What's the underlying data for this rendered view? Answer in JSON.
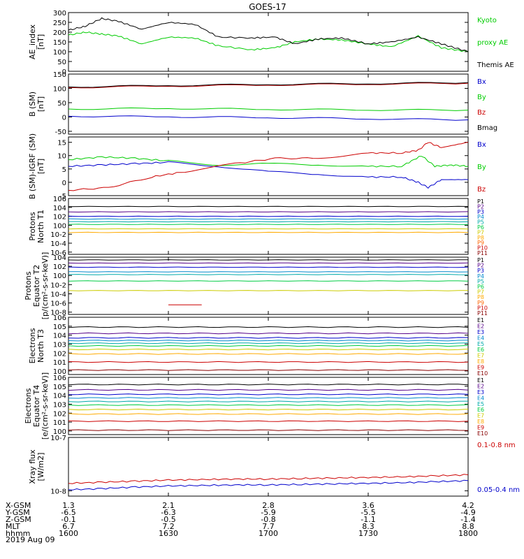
{
  "title": "GOES-17",
  "date_label": "2019 Aug 09",
  "colors": {
    "black": "#000000",
    "green": "#00cc00",
    "blue": "#0000cc",
    "red": "#cc0000"
  },
  "footer": {
    "labels": [
      "X-GSM",
      "Y-GSM",
      "Z-GSM",
      "MLT",
      "hhmm"
    ],
    "columns": [
      [
        "1.3",
        "-6.5",
        "-0.1",
        "6.7",
        "1600"
      ],
      [
        "2.1",
        "-6.3",
        "-0.5",
        "7.2",
        "1630"
      ],
      [
        "2.8",
        "-5.9",
        "-0.8",
        "7.7",
        "1700"
      ],
      [
        "3.6",
        "-5.5",
        "-1.1",
        "8.3",
        "1730"
      ],
      [
        "4.2",
        "-4.9",
        "-1.4",
        "8.8",
        "1800"
      ]
    ]
  },
  "chart_data": [
    {
      "type": "line",
      "ylabel": [
        "AE_index",
        "[nT]"
      ],
      "yticks": [
        "300",
        "250",
        "200",
        "150",
        "100",
        "50",
        "0"
      ],
      "ylim": [
        0,
        300
      ],
      "scale": "linear",
      "xlim": [
        "16:00",
        "18:00"
      ],
      "series": [
        {
          "name": "Kyoto proxy AE",
          "color": "#00cc00",
          "x": [
            0,
            5,
            10,
            15,
            22,
            30,
            38,
            45,
            55,
            62,
            68,
            75,
            82,
            90,
            97,
            105,
            112,
            120
          ],
          "y": [
            185,
            200,
            190,
            180,
            140,
            175,
            170,
            130,
            110,
            120,
            150,
            165,
            160,
            140,
            125,
            180,
            120,
            100
          ]
        },
        {
          "name": "Themis AE",
          "color": "#000000",
          "x": [
            0,
            5,
            10,
            15,
            22,
            30,
            38,
            45,
            55,
            62,
            68,
            75,
            82,
            90,
            97,
            105,
            112,
            120
          ],
          "y": [
            210,
            230,
            270,
            255,
            215,
            250,
            240,
            175,
            170,
            175,
            140,
            165,
            170,
            140,
            150,
            175,
            140,
            100
          ]
        }
      ],
      "legend": [
        {
          "text": "Kyoto",
          "color": "#00cc00"
        },
        {
          "text": "proxy AE",
          "color": "#00cc00"
        },
        {
          "text": "Themis AE",
          "color": "#000000"
        }
      ]
    },
    {
      "type": "line",
      "ylabel": [
        "B (SM)",
        "[nT]"
      ],
      "yticks": [
        "150",
        "100",
        "50",
        "0",
        "-50"
      ],
      "ylim": [
        -60,
        150
      ],
      "scale": "linear",
      "xlim": [
        "16:00",
        "18:00"
      ],
      "series": [
        {
          "name": "Bx",
          "color": "#0000cc",
          "x": [
            0,
            30,
            60,
            90,
            120
          ],
          "y": [
            3,
            1,
            -2,
            -6,
            -10
          ]
        },
        {
          "name": "By",
          "color": "#00cc00",
          "x": [
            0,
            30,
            60,
            90,
            120
          ],
          "y": [
            28,
            30,
            27,
            25,
            24
          ]
        },
        {
          "name": "Bz",
          "color": "#cc0000",
          "x": [
            0,
            30,
            60,
            90,
            120
          ],
          "y": [
            103,
            108,
            112,
            115,
            118
          ]
        },
        {
          "name": "Bmag",
          "color": "#000000",
          "x": [
            0,
            30,
            60,
            90,
            120
          ],
          "y": [
            105,
            110,
            114,
            117,
            120
          ]
        }
      ],
      "legend": [
        {
          "text": "Bx",
          "color": "#0000cc"
        },
        {
          "text": "By",
          "color": "#00cc00"
        },
        {
          "text": "Bz",
          "color": "#cc0000"
        },
        {
          "text": "Bmag",
          "color": "#000000"
        }
      ]
    },
    {
      "type": "line",
      "ylabel": [
        "B (SM)-IGRF (SM)",
        "[nT]"
      ],
      "yticks": [
        "15",
        "10",
        "5",
        "0",
        "-5"
      ],
      "ylim": [
        -5,
        17
      ],
      "scale": "linear",
      "xlim": [
        "16:00",
        "18:00"
      ],
      "series": [
        {
          "name": "Bx",
          "color": "#0000cc",
          "x": [
            0,
            10,
            20,
            30,
            45,
            60,
            75,
            90,
            100,
            105,
            108,
            112,
            120
          ],
          "y": [
            6,
            6.5,
            7,
            7.5,
            6,
            4,
            3,
            2,
            2,
            0,
            -2,
            1,
            1
          ]
        },
        {
          "name": "By",
          "color": "#00cc00",
          "x": [
            0,
            10,
            20,
            30,
            45,
            60,
            75,
            90,
            100,
            106,
            110,
            115,
            120
          ],
          "y": [
            8.5,
            9.5,
            9,
            8,
            6.5,
            7,
            6.5,
            6,
            6,
            10,
            6,
            6.5,
            6
          ]
        },
        {
          "name": "Bz",
          "color": "#cc0000",
          "x": [
            0,
            12,
            25,
            35,
            50,
            62,
            75,
            90,
            100,
            105,
            108,
            112,
            120
          ],
          "y": [
            -3,
            -2,
            2,
            4,
            7,
            9,
            9,
            11,
            11,
            12,
            15,
            13,
            15
          ]
        }
      ],
      "legend": [
        {
          "text": "Bx",
          "color": "#0000cc"
        },
        {
          "text": "By",
          "color": "#00cc00"
        },
        {
          "text": "Bz",
          "color": "#cc0000"
        }
      ]
    },
    {
      "type": "line",
      "scale": "log",
      "ylabel": [
        "Protons",
        "North T1"
      ],
      "yticks": [
        "10^6",
        "10^4",
        "10^2",
        "10^0",
        "10^-2",
        "10^-4",
        "10^-6"
      ],
      "ylim": [
        -6.5,
        6
      ],
      "xlim": [
        "16:00",
        "18:00"
      ],
      "series": [
        {
          "name": "P1",
          "color": "#000000",
          "value": 4.2
        },
        {
          "name": "P2",
          "color": "#550088",
          "value": 3.0
        },
        {
          "name": "P3",
          "color": "#0000cc",
          "value": 2.0
        },
        {
          "name": "P4",
          "color": "#0088cc",
          "value": 1.4
        },
        {
          "name": "P5",
          "color": "#00aaaa",
          "value": 0.8
        },
        {
          "name": "P6",
          "color": "#00cc44",
          "value": 0.2
        },
        {
          "name": "P7",
          "color": "#cccc00",
          "value": -0.8
        },
        {
          "name": "P8",
          "color": "#ffaa00",
          "value": -1.6
        }
      ],
      "legend": [
        {
          "text": "P1",
          "color": "#000000"
        },
        {
          "text": "P2",
          "color": "#550088"
        },
        {
          "text": "P3",
          "color": "#0000cc"
        },
        {
          "text": "P4",
          "color": "#0088cc"
        },
        {
          "text": "P5",
          "color": "#00aaaa"
        },
        {
          "text": "P6",
          "color": "#00cc44"
        },
        {
          "text": "P7",
          "color": "#cccc00"
        },
        {
          "text": "P8",
          "color": "#ffaa00"
        },
        {
          "text": "P9",
          "color": "#ff6600"
        },
        {
          "text": "P10",
          "color": "#cc0000"
        },
        {
          "text": "P11",
          "color": "#880000"
        }
      ]
    },
    {
      "type": "line",
      "scale": "log",
      "ylabel": [
        "Protons",
        "Equator T2",
        "[p/(cm²-s-sr-keV)]"
      ],
      "yticks": [
        "10^4",
        "10^2",
        "10^0",
        "10^-2",
        "10^-4",
        "10^-6",
        "10^-8"
      ],
      "ylim": [
        -8.5,
        4
      ],
      "xlim": [
        "16:00",
        "18:00"
      ],
      "series": [
        {
          "name": "P1",
          "color": "#000000",
          "value": 3.4
        },
        {
          "name": "P2",
          "color": "#550088",
          "value": 2.7
        },
        {
          "name": "P3",
          "color": "#0000cc",
          "value": 1.8
        },
        {
          "name": "P4",
          "color": "#0088cc",
          "value": 0.8
        },
        {
          "name": "P5",
          "color": "#00aaaa",
          "value": 0.2
        },
        {
          "name": "P6",
          "color": "#00cc44",
          "value": -1.2
        },
        {
          "name": "P7",
          "color": "#cccc00",
          "value": -3.3
        },
        {
          "name": "P10",
          "color": "#cc0000",
          "value": -6.4,
          "x": [
            30,
            40
          ]
        }
      ],
      "legend": [
        {
          "text": "P1",
          "color": "#000000"
        },
        {
          "text": "P2",
          "color": "#550088"
        },
        {
          "text": "P3",
          "color": "#0000cc"
        },
        {
          "text": "P4",
          "color": "#0088cc"
        },
        {
          "text": "P5",
          "color": "#00aaaa"
        },
        {
          "text": "P6",
          "color": "#00cc44"
        },
        {
          "text": "P7",
          "color": "#cccc00"
        },
        {
          "text": "P8",
          "color": "#ffaa00"
        },
        {
          "text": "P9",
          "color": "#ff6600"
        },
        {
          "text": "P10",
          "color": "#cc0000"
        },
        {
          "text": "P11",
          "color": "#880000"
        }
      ]
    },
    {
      "type": "line",
      "scale": "log",
      "ylabel": [
        "Electrons",
        "North T3"
      ],
      "yticks": [
        "10^6",
        "10^5",
        "10^4",
        "10^3",
        "10^2",
        "10^1",
        "10^0"
      ],
      "ylim": [
        -0.4,
        6
      ],
      "xlim": [
        "16:00",
        "18:00"
      ],
      "series": [
        {
          "name": "E1",
          "color": "#000000",
          "value": 4.9
        },
        {
          "name": "E2",
          "color": "#550088",
          "value": 4.2
        },
        {
          "name": "E3",
          "color": "#0000cc",
          "value": 3.7
        },
        {
          "name": "E4",
          "color": "#0088cc",
          "value": 3.4
        },
        {
          "name": "E5",
          "color": "#00aaaa",
          "value": 3.1
        },
        {
          "name": "E6",
          "color": "#00cc44",
          "value": 2.8
        },
        {
          "name": "E7",
          "color": "#cccc00",
          "value": 2.4
        },
        {
          "name": "E8",
          "color": "#ffaa00",
          "value": 1.9
        },
        {
          "name": "E9",
          "color": "#cc0000",
          "value": 1.0
        },
        {
          "name": "E10",
          "color": "#880000",
          "value": 0.1
        }
      ],
      "legend": [
        {
          "text": "E1",
          "color": "#000000"
        },
        {
          "text": "E2",
          "color": "#550088"
        },
        {
          "text": "E3",
          "color": "#0000cc"
        },
        {
          "text": "E4",
          "color": "#0088cc"
        },
        {
          "text": "E5",
          "color": "#00aaaa"
        },
        {
          "text": "E6",
          "color": "#00cc44"
        },
        {
          "text": "E7",
          "color": "#cccc00"
        },
        {
          "text": "E8",
          "color": "#ffaa00"
        },
        {
          "text": "E9",
          "color": "#cc0000"
        },
        {
          "text": "E10",
          "color": "#880000"
        }
      ]
    },
    {
      "type": "line",
      "scale": "log",
      "ylabel": [
        "Electrons",
        "Equator T4",
        "[e/(cm²-s-sr-keV)]"
      ],
      "yticks": [
        "10^6",
        "10^5",
        "10^4",
        "10^3",
        "10^2",
        "10^1",
        "10^0"
      ],
      "ylim": [
        -0.4,
        6
      ],
      "xlim": [
        "16:00",
        "18:00"
      ],
      "series": [
        {
          "name": "E1",
          "color": "#000000",
          "value": 5.2
        },
        {
          "name": "E2",
          "color": "#550088",
          "value": 4.6
        },
        {
          "name": "E3",
          "color": "#0000cc",
          "value": 4.1
        },
        {
          "name": "E4",
          "color": "#0088cc",
          "value": 3.7
        },
        {
          "name": "E5",
          "color": "#00aaaa",
          "value": 3.3
        },
        {
          "name": "E6",
          "color": "#00cc44",
          "value": 2.9
        },
        {
          "name": "E7",
          "color": "#cccc00",
          "value": 2.4
        },
        {
          "name": "E8",
          "color": "#ffaa00",
          "value": 1.9
        },
        {
          "name": "E9",
          "color": "#cc0000",
          "value": 1.1
        },
        {
          "name": "E10",
          "color": "#880000",
          "value": 0.1
        }
      ],
      "legend": [
        {
          "text": "E1",
          "color": "#000000"
        },
        {
          "text": "E2",
          "color": "#550088"
        },
        {
          "text": "E3",
          "color": "#0000cc"
        },
        {
          "text": "E4",
          "color": "#0088cc"
        },
        {
          "text": "E5",
          "color": "#00aaaa"
        },
        {
          "text": "E6",
          "color": "#00cc44"
        },
        {
          "text": "E7",
          "color": "#cccc00"
        },
        {
          "text": "E8",
          "color": "#ffaa00"
        },
        {
          "text": "E9",
          "color": "#cc0000"
        },
        {
          "text": "E10",
          "color": "#880000"
        }
      ]
    },
    {
      "type": "line",
      "scale": "log",
      "ylabel": [
        "Xray flux",
        "[W/m2]"
      ],
      "yticks": [
        "10^-7",
        "10^-8"
      ],
      "ylim": [
        -8.1,
        -7
      ],
      "xlim": [
        "16:00",
        "18:00"
      ],
      "series": [
        {
          "name": "0.1-0.8 nm",
          "color": "#cc0000",
          "x": [
            0,
            10,
            20,
            30,
            40,
            50,
            60,
            70,
            80,
            90,
            100,
            110,
            120
          ],
          "y": [
            -7.86,
            -7.84,
            -7.82,
            -7.8,
            -7.79,
            -7.78,
            -7.78,
            -7.77,
            -7.76,
            -7.75,
            -7.74,
            -7.72,
            -7.7
          ]
        },
        {
          "name": "0.05-0.4 nm",
          "color": "#0000cc",
          "x": [
            0,
            10,
            20,
            30,
            40,
            50,
            60,
            70,
            80,
            90,
            100,
            110,
            120
          ],
          "y": [
            -7.98,
            -7.96,
            -7.93,
            -7.91,
            -7.9,
            -7.89,
            -7.89,
            -7.88,
            -7.87,
            -7.86,
            -7.85,
            -7.83,
            -7.81
          ]
        }
      ],
      "legend": [
        {
          "text": "0.1-0.8 nm",
          "color": "#cc0000"
        },
        {
          "text": "0.05-0.4 nm",
          "color": "#0000cc"
        }
      ]
    }
  ]
}
